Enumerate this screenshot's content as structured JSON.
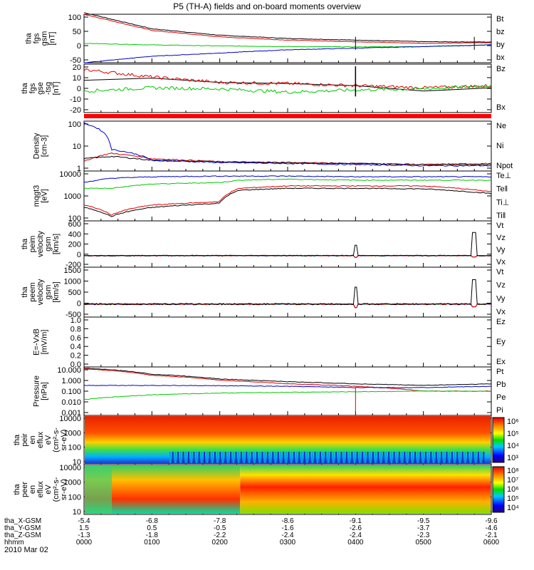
{
  "title": "P5 (TH-A) fields and on-board moments overview",
  "date_label": "2010 Mar 02",
  "colors": {
    "black": "#000000",
    "red": "#e00000",
    "green": "#00c800",
    "blue": "#0000d0",
    "redbar": "#ff0000"
  },
  "panels": [
    {
      "id": "fgs-gsm",
      "ylabel": [
        "tha",
        "fgs",
        "gsm",
        "[nT]"
      ],
      "yticks": [
        "100",
        "50",
        "0",
        "-50"
      ],
      "legend": [
        {
          "text": "Bt",
          "color": "black"
        },
        {
          "text": "bz",
          "color": "red"
        },
        {
          "text": "by",
          "color": "green"
        },
        {
          "text": "bx",
          "color": "blue"
        }
      ]
    },
    {
      "id": "fgs-dsl",
      "ylabel": [
        "tha",
        "fgs",
        "gse",
        "-tsg",
        "[nT]"
      ],
      "yticks": [
        "20",
        "10",
        "0",
        "-10",
        "-20"
      ],
      "legend": [
        {
          "text": "Bz",
          "color": "red"
        },
        {
          "text": "Bx",
          "color": "green"
        }
      ]
    },
    {
      "id": "density",
      "ylabel": [
        "Density",
        "[cm-3]"
      ],
      "yticks": [
        "100",
        "10",
        "1"
      ],
      "legend": [
        {
          "text": "Ne",
          "color": "red"
        },
        {
          "text": "Ni",
          "color": "black"
        },
        {
          "text": "Npot",
          "color": "blue"
        }
      ]
    },
    {
      "id": "temp",
      "ylabel": [
        "mqgt3",
        "[eV]"
      ],
      "yticks": [
        "10000",
        "1000",
        "100"
      ],
      "legend": [
        {
          "text": "Te⊥",
          "color": "red"
        },
        {
          "text": "Te‖",
          "color": "black"
        },
        {
          "text": "Ti⊥",
          "color": "blue"
        },
        {
          "text": "Ti‖",
          "color": "green"
        }
      ]
    },
    {
      "id": "peim-vel",
      "ylabel": [
        "tha",
        "peim",
        "velocity",
        "gsm",
        "[km/s]"
      ],
      "yticks": [
        "600",
        "400",
        "200",
        "0",
        "-200"
      ],
      "legend": [
        {
          "text": "Vt",
          "color": "black"
        },
        {
          "text": "Vz",
          "color": "red"
        },
        {
          "text": "Vy",
          "color": "green"
        },
        {
          "text": "Vx",
          "color": "blue"
        }
      ]
    },
    {
      "id": "peem-vel",
      "ylabel": [
        "tha",
        "peem",
        "velocity",
        "gsm",
        "[km/s]"
      ],
      "yticks": [
        "1500",
        "1000",
        "500",
        "0",
        "-500"
      ],
      "legend": [
        {
          "text": "Vt",
          "color": "black"
        },
        {
          "text": "Vz",
          "color": "red"
        },
        {
          "text": "Vy",
          "color": "green"
        },
        {
          "text": "Vx",
          "color": "blue"
        }
      ]
    },
    {
      "id": "efield",
      "ylabel": [
        "E=-VxB",
        "[mV/m]"
      ],
      "yticks": [
        "1.0",
        "0.8",
        "0.6",
        "0.4",
        "0.2",
        "0.0"
      ],
      "legend": [
        {
          "text": "Ez",
          "color": "red"
        },
        {
          "text": "Ey",
          "color": "green"
        },
        {
          "text": "Ex",
          "color": "blue"
        }
      ]
    },
    {
      "id": "pressure",
      "ylabel": [
        "Pressure",
        "[nPa]"
      ],
      "yticks": [
        "10.000",
        "1.000",
        "0.100",
        "0.010",
        "0.001"
      ],
      "legend": [
        {
          "text": "Pt",
          "color": "black"
        },
        {
          "text": "Pb",
          "color": "red"
        },
        {
          "text": "Pe",
          "color": "green"
        },
        {
          "text": "Pi",
          "color": "blue"
        }
      ]
    },
    {
      "id": "peir-spec",
      "ylabel": [
        "tha",
        "peir",
        "en",
        "eflux",
        "eV",
        "(cm²-s-",
        "sr-eV)"
      ],
      "yticks": [
        "10000",
        "1000",
        "100",
        "10"
      ],
      "colorbar": [
        "10⁶",
        "10⁵",
        "10⁴",
        "10³"
      ]
    },
    {
      "id": "peer-spec",
      "ylabel": [
        "tha",
        "peer",
        "en",
        "eflux",
        "eV",
        "(cm²-s-",
        "sr-eV)"
      ],
      "yticks": [
        "10000",
        "1000",
        "100",
        "10"
      ],
      "colorbar": [
        "10⁸",
        "10⁷",
        "10⁶",
        "10⁵",
        "10⁴"
      ]
    }
  ],
  "xaxis": {
    "rows": [
      {
        "label": "tha_X-GSM",
        "values": [
          "-5.4",
          "-6.8",
          "-7.8",
          "-8.6",
          "-9.1",
          "-9.5",
          "-9.6"
        ]
      },
      {
        "label": "tha_Y-GSM",
        "values": [
          "1.5",
          "0.5",
          "-0.5",
          "-1.6",
          "-2.6",
          "-3.7",
          "-4.6"
        ]
      },
      {
        "label": "tha_Z-GSM",
        "values": [
          "-1.3",
          "-1.8",
          "-2.2",
          "-2.4",
          "-2.4",
          "-2.3",
          "-2.1"
        ]
      },
      {
        "label": "hhmm",
        "values": [
          "0000",
          "0100",
          "0200",
          "0300",
          "0400",
          "0500",
          "0600"
        ]
      }
    ]
  },
  "chart_data": [
    {
      "type": "line",
      "title": "tha fgs gsm [nT]",
      "x_hours": [
        0,
        1,
        2,
        3,
        4,
        5,
        6
      ],
      "ylim": [
        -50,
        100
      ],
      "series": [
        {
          "name": "Bt",
          "values": [
            105,
            55,
            35,
            25,
            20,
            15,
            14
          ]
        },
        {
          "name": "bz",
          "values": [
            100,
            50,
            30,
            20,
            15,
            10,
            12
          ]
        },
        {
          "name": "by",
          "values": [
            10,
            5,
            2,
            0,
            -1,
            0,
            5
          ]
        },
        {
          "name": "bx",
          "values": [
            -50,
            -30,
            -20,
            -10,
            -5,
            0,
            5
          ]
        }
      ]
    },
    {
      "type": "line",
      "title": "tha fgs gse-tsg [nT]",
      "x_hours": [
        0,
        1,
        2,
        3,
        4,
        5,
        6
      ],
      "ylim": [
        -25,
        20
      ],
      "series": [
        {
          "name": "Bz",
          "values": [
            15,
            8,
            3,
            2,
            0,
            -2,
            0
          ]
        },
        {
          "name": "Bx",
          "values": [
            -5,
            -2,
            -3,
            -6,
            -4,
            -3,
            0
          ]
        }
      ]
    },
    {
      "type": "line",
      "title": "Density [cm-3]",
      "x_hours": [
        0,
        0.4,
        1,
        2,
        3,
        4,
        5,
        6
      ],
      "ylim": [
        0.3,
        200
      ],
      "yscale": "log",
      "series": [
        {
          "name": "Ne",
          "values": [
            1,
            3,
            1.5,
            1,
            0.9,
            0.8,
            0.7,
            0.8
          ]
        },
        {
          "name": "Ni",
          "values": [
            1.5,
            2,
            1.2,
            1,
            0.9,
            0.8,
            0.7,
            0.7
          ]
        },
        {
          "name": "Npot",
          "values": [
            150,
            5,
            1.2,
            0.9,
            0.8,
            0.7,
            0.6,
            0.6
          ]
        }
      ]
    },
    {
      "type": "line",
      "title": "mqgt3 [eV]",
      "x_hours": [
        0,
        0.4,
        1,
        2,
        2.3,
        3,
        4,
        5,
        6
      ],
      "ylim": [
        30,
        12000
      ],
      "yscale": "log",
      "series": [
        {
          "name": "Te⊥",
          "values": [
            200,
            60,
            200,
            300,
            1500,
            2000,
            2000,
            2000,
            1000
          ]
        },
        {
          "name": "Te‖",
          "values": [
            150,
            50,
            150,
            250,
            1200,
            1500,
            1500,
            1400,
            800
          ]
        },
        {
          "name": "Ti⊥",
          "values": [
            3000,
            5000,
            6000,
            6500,
            6500,
            6500,
            6000,
            6000,
            6000
          ]
        },
        {
          "name": "Ti‖",
          "values": [
            1500,
            1500,
            2500,
            3000,
            4000,
            4500,
            4000,
            4000,
            4000
          ]
        }
      ]
    },
    {
      "type": "line",
      "title": "tha peim velocity gsm [km/s]",
      "x_hours": [
        0,
        6
      ],
      "ylim": [
        -200,
        600
      ],
      "notes": "near-zero with spikes at ~04:00 and ~05:45"
    },
    {
      "type": "line",
      "title": "tha peem velocity gsm [km/s]",
      "x_hours": [
        0,
        6
      ],
      "ylim": [
        -500,
        1500
      ],
      "notes": "near-zero with spikes at ~04:00 and ~05:45"
    },
    {
      "type": "line",
      "title": "E=-VxB [mV/m]",
      "x_hours": [
        0,
        6
      ],
      "ylim": [
        0,
        1
      ],
      "series": []
    },
    {
      "type": "line",
      "title": "Pressure [nPa]",
      "x_hours": [
        0,
        1,
        2,
        3,
        4,
        5,
        6
      ],
      "ylim": [
        0.001,
        10
      ],
      "yscale": "log",
      "series": [
        {
          "name": "Pt",
          "values": [
            8,
            2.5,
            1,
            0.6,
            0.4,
            0.3,
            0.4
          ]
        },
        {
          "name": "Pb",
          "values": [
            7,
            2,
            0.8,
            0.4,
            0.25,
            0.1,
            0.1
          ]
        },
        {
          "name": "Pe",
          "values": [
            0.02,
            0.05,
            0.07,
            0.08,
            0.09,
            0.1,
            0.1
          ]
        },
        {
          "name": "Pi",
          "values": [
            0.3,
            0.3,
            0.28,
            0.25,
            0.2,
            0.2,
            0.25
          ]
        }
      ]
    },
    {
      "type": "heatmap",
      "title": "tha peir en eflux",
      "x_hours": [
        0,
        6
      ],
      "ylim": [
        10,
        15000
      ],
      "colorbar_range": [
        "10³",
        "10⁶"
      ]
    },
    {
      "type": "heatmap",
      "title": "tha peer en eflux",
      "x_hours": [
        0,
        6
      ],
      "ylim": [
        10,
        15000
      ],
      "colorbar_range": [
        "10⁴",
        "10⁸"
      ]
    }
  ]
}
